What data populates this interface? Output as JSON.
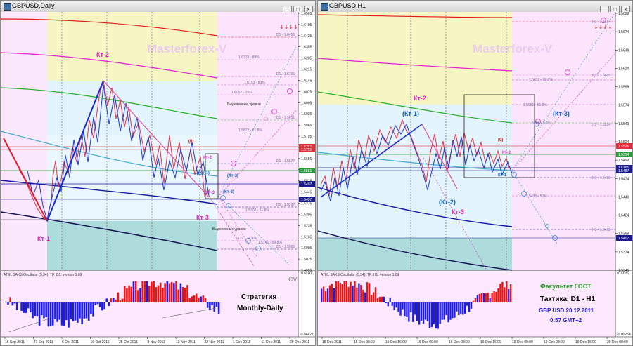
{
  "left": {
    "title": "GBPUSD,Daily",
    "watermark": "Masterforex-V",
    "price_ticks": [
      "1.6565",
      "1.6495",
      "1.6425",
      "1.6355",
      "1.6285",
      "1.6215",
      "1.6145",
      "1.6075",
      "1.6005",
      "1.5935",
      "1.5865",
      "1.5795",
      "1.5725",
      "1.5655",
      "1.5585",
      "1.5515",
      "1.5445",
      "1.5375",
      "1.5305",
      "1.5235",
      "1.5165",
      "1.5095",
      "1.5025",
      "1.4955"
    ],
    "price_flags": [
      {
        "text": "1.5767",
        "color": "#e0303c"
      },
      {
        "text": "1.5725",
        "color": "#e0303c"
      },
      {
        "text": "1.5581",
        "color": "#2a9a3a"
      },
      {
        "text": "1.5497",
        "color": "#1a1a8a"
      },
      {
        "text": "1.5407",
        "color": "#1a1a8a"
      }
    ],
    "dates": [
      "16 Sep 2011",
      "27 Sep 2011",
      "6 Oct 2011",
      "16 Oct 2011",
      "25 Oct 2011",
      "3 Nov 2011",
      "13 Nov 2011",
      "22 Nov 2011",
      "1 Dec 2011",
      "11 Dec 2011",
      "20 Dec 2011"
    ],
    "labels": {
      "kt2": "Кт-2",
      "kt1": "Кт-1",
      "kt3": "Кт-3",
      "kt2s": "Кт-2",
      "kt1s": "(Кт-1)",
      "kt3s": "(Кт-3)",
      "kt3s2": "Кт-3",
      "kt2s2": "(Кт-2)",
      "zero": "(0)",
      "vyd1": "Выделенные уровни",
      "vyd2": "Выделенные уровни",
      "d1_1": "D1 - 1.6455",
      "d1_2": "D1 - 1.6195",
      "d1_3": "D1 - 1.5951",
      "d1_4": "D1 - 1.5677",
      "d1_5": "D1 - 1.5267",
      "d1_6": "D1 - 1.5085",
      "lv1": "1.6378 - 89%",
      "lv2": "1.6153 - 83%",
      "lv3": "1.6057 - 76%",
      "lv4": "1.5872 - 61.8%",
      "lv5": "1.5302 - 61.8%",
      "lv6": "1.5179 - 76.4%",
      "lv7": "1.5141 - 69.8%"
    },
    "oscillator": {
      "title": "ATEL SAKS.Oscillator (5,34). TF: D1. version 1.09",
      "max": "0.02041",
      "min": "-0.04427",
      "cv": "CV"
    },
    "strategy_line1": "Стратегия",
    "strategy_line2": "Monthly-Daily"
  },
  "right": {
    "title": "GBPUSD,H1",
    "watermark": "Masterforex-V",
    "price_ticks": [
      "1.5699",
      "1.5674",
      "1.5649",
      "1.5624",
      "1.5599",
      "1.5574",
      "1.5549",
      "1.5524",
      "1.5499",
      "1.5474",
      "1.5449",
      "1.5424",
      "1.5399",
      "1.5374",
      "1.5349"
    ],
    "price_flags": [
      {
        "text": "1.5526",
        "color": "#e0303c"
      },
      {
        "text": "1.5514",
        "color": "#2a9a3a"
      },
      {
        "text": "1.5491",
        "color": "#1a1a8a"
      },
      {
        "text": "1.5487",
        "color": "#1a1a8a"
      },
      {
        "text": "1.5407",
        "color": "#1a1a8a"
      }
    ],
    "dates": [
      "15 Dec 2011",
      "15 Dec 08:00",
      "15 Dec 16:00",
      "16 Dec 00:00",
      "16 Dec 08:00",
      "16 Dec 16:00",
      "19 Dec 00:00",
      "19 Dec 08:00",
      "19 Dec 16:00",
      "20 Dec 00:00"
    ],
    "labels": {
      "kt2": "Кт-2",
      "kt1": "(Кт-1)",
      "kt3": "(Кт-3)",
      "kt2b": "(Кт-2)",
      "kt3b": "Кт-3",
      "zero": "(0)",
      "kt2s": "Кт-2",
      "kt1s": "Кт-1",
      "h1_1": "H1 - 1.5664",
      "h1_2": "H1 - 1.5605",
      "h1_3": "H1 - 1.5554",
      "h1_4": "H1 - 1.5496",
      "h1_5": "H1 - 1.5412",
      "lv1": "1.5617 - 83.7%",
      "lv2": "1.5591 - 61.8%",
      "lv3": "1.5558 - 3.2%",
      "lv4": "1.5475 - 50%"
    },
    "oscillator": {
      "title": "ATEL SAKS.Oscillator (5,34). TF: H1. version 1.09",
      "max": "0.00389",
      "min": "-0.00254"
    },
    "faculty": "Факультет ГОСТ",
    "tactic": "Тактика. D1 - H1",
    "pair_date": "GBP USD 20.12.2011",
    "time": "0:57 GMT+2"
  },
  "colors": {
    "yellow_zone": "#f8f5c4",
    "blue_zone": "#e4f4fc",
    "teal_zone": "#aedcdc",
    "pink_bg": "#fce8fc",
    "bull": "#ee1111",
    "bear": "#1a1aee"
  }
}
